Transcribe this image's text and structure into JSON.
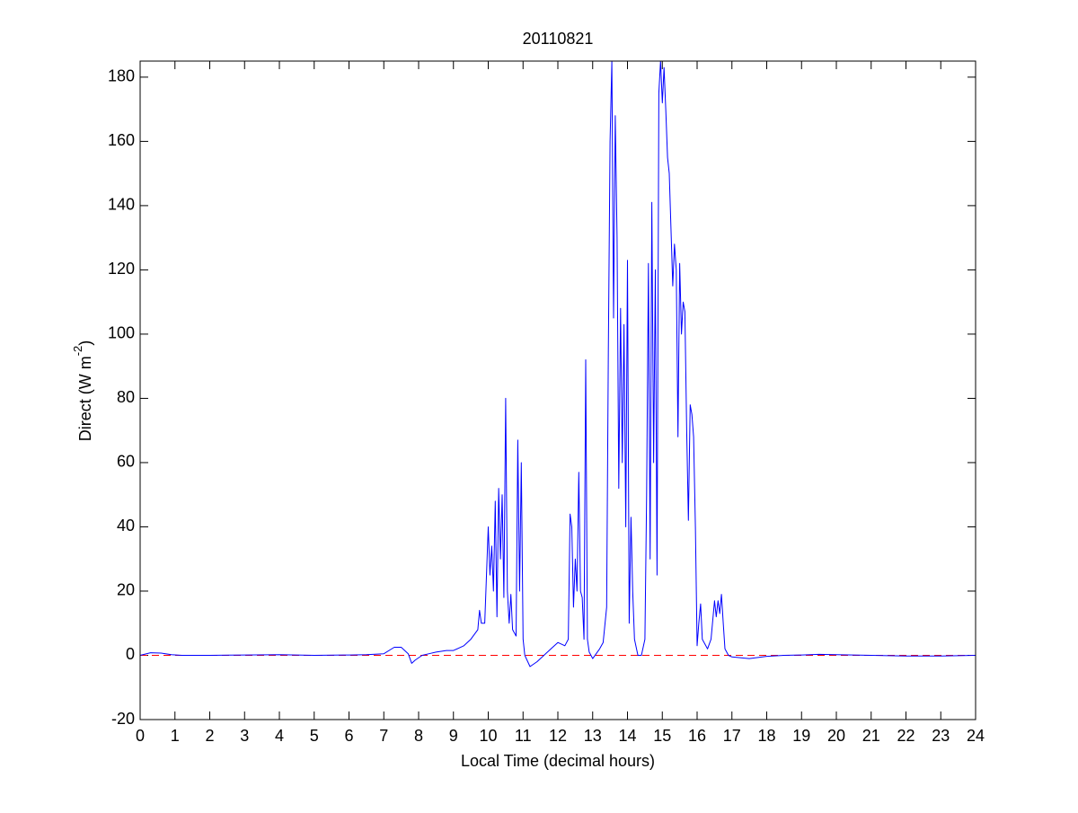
{
  "chart_data": {
    "type": "line",
    "title": "20110821",
    "xlabel": "Local Time (decimal hours)",
    "ylabel": [
      "Direct (W m",
      "-2",
      ")"
    ],
    "xlim": [
      0,
      24
    ],
    "xticks": [
      0,
      1,
      2,
      3,
      4,
      5,
      6,
      7,
      8,
      9,
      10,
      11,
      12,
      13,
      14,
      15,
      16,
      17,
      18,
      19,
      20,
      21,
      22,
      23,
      24
    ],
    "ylim": [
      -20,
      185
    ],
    "yticks": [
      -20,
      0,
      20,
      40,
      60,
      80,
      100,
      120,
      140,
      160,
      180
    ],
    "reference_line": {
      "value": 0,
      "color": "#ff0000",
      "dashed": true
    },
    "series": [
      {
        "color": "#0000ff",
        "x": [
          0,
          0.3,
          0.6,
          0.9,
          1.2,
          2,
          3,
          4,
          5,
          6,
          6.5,
          7,
          7.3,
          7.5,
          7.7,
          7.8,
          7.9,
          8.1,
          8.3,
          8.5,
          8.8,
          9,
          9.3,
          9.5,
          9.7,
          9.75,
          9.8,
          9.9,
          10.0,
          10.05,
          10.1,
          10.15,
          10.2,
          10.25,
          10.3,
          10.35,
          10.4,
          10.45,
          10.5,
          10.55,
          10.6,
          10.65,
          10.7,
          10.8,
          10.85,
          10.9,
          10.95,
          11.0,
          11.05,
          11.2,
          11.4,
          11.6,
          11.8,
          12.0,
          12.2,
          12.3,
          12.35,
          12.4,
          12.45,
          12.5,
          12.55,
          12.6,
          12.65,
          12.7,
          12.75,
          12.8,
          12.85,
          12.9,
          13.0,
          13.2,
          13.3,
          13.4,
          13.45,
          13.5,
          13.55,
          13.6,
          13.65,
          13.7,
          13.75,
          13.8,
          13.85,
          13.9,
          13.95,
          14.0,
          14.05,
          14.1,
          14.15,
          14.2,
          14.3,
          14.4,
          14.5,
          14.55,
          14.6,
          14.65,
          14.7,
          14.75,
          14.8,
          14.85,
          14.9,
          14.95,
          15.0,
          15.05,
          15.1,
          15.15,
          15.2,
          15.3,
          15.35,
          15.4,
          15.45,
          15.5,
          15.55,
          15.6,
          15.65,
          15.7,
          15.75,
          15.8,
          15.85,
          15.9,
          15.95,
          16.0,
          16.05,
          16.1,
          16.15,
          16.3,
          16.4,
          16.5,
          16.55,
          16.6,
          16.65,
          16.7,
          16.75,
          16.8,
          16.9,
          17,
          17.5,
          18,
          18.5,
          19,
          19.5,
          20,
          21,
          22,
          23,
          24
        ],
        "values": [
          0,
          0.8,
          0.7,
          0.2,
          0,
          0,
          0.1,
          0.2,
          0,
          0.1,
          0.2,
          0.5,
          2.5,
          2.5,
          0.5,
          -2.5,
          -1.5,
          0,
          0.5,
          1,
          1.5,
          1.5,
          3,
          5,
          8,
          14,
          10,
          10,
          40,
          25,
          34,
          20,
          48,
          12,
          52,
          30,
          50,
          18,
          80,
          20,
          10,
          19,
          8,
          6,
          67,
          20,
          60,
          5,
          0,
          -3.5,
          -2,
          0,
          2,
          4,
          3,
          5,
          44,
          40,
          15,
          30,
          20,
          57,
          20,
          18,
          5,
          92,
          5,
          1,
          -1,
          2,
          4,
          15,
          95,
          160,
          185,
          105,
          168,
          130,
          52,
          108,
          60,
          103,
          40,
          123,
          10,
          43,
          20,
          5,
          0,
          0,
          5,
          50,
          122,
          30,
          141,
          60,
          120,
          25,
          175,
          185,
          172,
          183,
          170,
          155,
          150,
          115,
          128,
          120,
          68,
          122,
          100,
          110,
          107,
          70,
          42,
          78,
          75,
          68,
          40,
          3,
          10,
          16,
          5,
          2,
          5,
          17,
          12,
          17,
          13,
          19,
          10,
          2,
          0,
          -0.5,
          -1,
          -0.3,
          0,
          0.1,
          0.3,
          0.2,
          0,
          -0.2,
          -0.2,
          0
        ]
      }
    ]
  }
}
